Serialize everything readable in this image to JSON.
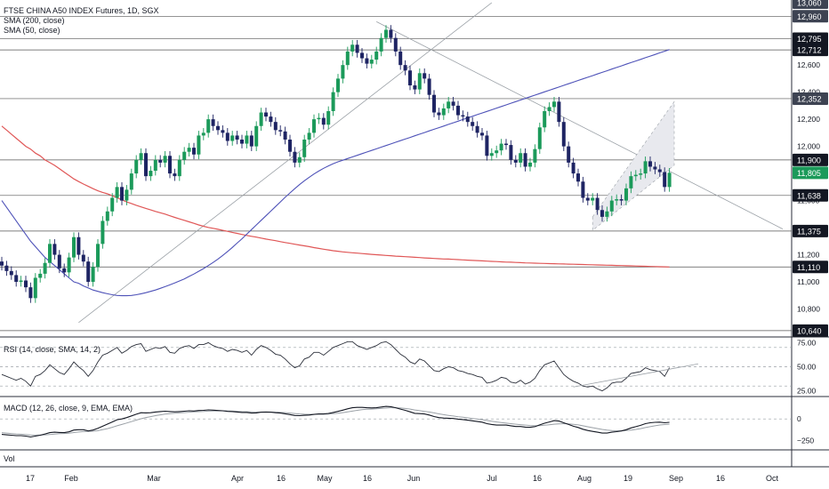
{
  "header": {
    "symbol_line": "FTSE CHINA A50 INDEX Futures, 1D, SGX",
    "sma200_label": "SMA (200, close)",
    "sma50_label": "SMA (50, close)"
  },
  "panes": {
    "rsi_label": "RSI (14, close, SMA, 14, 2)",
    "macd_label": "MACD (12, 26, close, 9, EMA, EMA)",
    "vol_label": "Vol"
  },
  "colors": {
    "up": "#1b9a5a",
    "down": "#1e2463",
    "sma200": "#e05757",
    "sma50": "#4e52b8",
    "trendline": "#9aa0a6",
    "hline": "#555555",
    "rsi": "#2a2e39",
    "macd": "#131722",
    "signal": "#9aa0a6"
  },
  "chart_data": [
    {
      "type": "candlestick",
      "title": "FTSE CHINA A50 INDEX Futures, 1D, SGX",
      "ylim": [
        10600,
        13080
      ],
      "x_ticks": [
        "17",
        "Feb",
        "Mar",
        "Apr",
        "16",
        "May",
        "16",
        "Jun",
        "Jul",
        "16",
        "Aug",
        "19",
        "Sep",
        "16",
        "Oct"
      ],
      "y_ticks": [
        "12,600",
        "12,400",
        "12,200",
        "12,000",
        "11,600",
        "11,200",
        "11,000",
        "10,800"
      ],
      "price_labels": [
        {
          "text": "13,060",
          "value": 13060,
          "style": "dark"
        },
        {
          "text": "12,960",
          "value": 12960,
          "style": "dark"
        },
        {
          "text": "12,795",
          "value": 12795,
          "style": "black"
        },
        {
          "text": "12,712",
          "value": 12712,
          "style": "black"
        },
        {
          "text": "12,352",
          "value": 12352,
          "style": "dark"
        },
        {
          "text": "11,900",
          "value": 11900,
          "style": "black"
        },
        {
          "text": "11,805",
          "value": 11805,
          "style": "green"
        },
        {
          "text": "11,638",
          "value": 11638,
          "style": "black"
        },
        {
          "text": "11,375",
          "value": 11375,
          "style": "black"
        },
        {
          "text": "11,110",
          "value": 11110,
          "style": "black"
        },
        {
          "text": "10,640",
          "value": 10640,
          "style": "black"
        }
      ],
      "horizontal_levels": [
        12960,
        12795,
        12712,
        12352,
        11900,
        11638,
        11375,
        11110,
        10640
      ],
      "closes": [
        11120,
        11080,
        11050,
        11000,
        11010,
        10960,
        10880,
        11030,
        11060,
        11140,
        11280,
        11200,
        11100,
        11070,
        11180,
        11330,
        11200,
        11150,
        11000,
        11110,
        11280,
        11450,
        11520,
        11620,
        11700,
        11600,
        11680,
        11800,
        11900,
        11950,
        11780,
        11820,
        11900,
        11880,
        11930,
        11800,
        11780,
        11900,
        11960,
        11990,
        11940,
        12080,
        12100,
        12200,
        12150,
        12120,
        12100,
        12040,
        12080,
        12050,
        12020,
        12080,
        12000,
        12150,
        12250,
        12220,
        12180,
        12120,
        12110,
        12050,
        11960,
        11880,
        11920,
        12050,
        12100,
        12200,
        12210,
        12160,
        12260,
        12400,
        12500,
        12600,
        12700,
        12750,
        12690,
        12650,
        12610,
        12640,
        12700,
        12800,
        12860,
        12800,
        12700,
        12600,
        12560,
        12450,
        12420,
        12540,
        12500,
        12380,
        12250,
        12230,
        12280,
        12330,
        12300,
        12230,
        12220,
        12180,
        12150,
        12100,
        12080,
        11930,
        11950,
        11970,
        12020,
        12010,
        11900,
        11880,
        11950,
        11850,
        11880,
        11980,
        12140,
        12260,
        12290,
        12330,
        12180,
        12000,
        11880,
        11800,
        11740,
        11620,
        11600,
        11620,
        11530,
        11480,
        11520,
        11600,
        11610,
        11600,
        11690,
        11780,
        11790,
        11800,
        11890,
        11850,
        11830,
        11810,
        11700,
        11805
      ],
      "sma200": [
        12150,
        12120,
        12090,
        12060,
        12030,
        12000,
        11980,
        11950,
        11930,
        11900,
        11880,
        11860,
        11835,
        11810,
        11785,
        11760,
        11740,
        11722,
        11705,
        11688,
        11672,
        11660,
        11650,
        11635,
        11620,
        11605,
        11590,
        11578,
        11565,
        11553,
        11542,
        11531,
        11520,
        11510,
        11500,
        11488,
        11476,
        11465,
        11454,
        11443,
        11432,
        11420,
        11410,
        11402,
        11395,
        11388,
        11380,
        11373,
        11365,
        11358,
        11350,
        11343,
        11336,
        11330,
        11323,
        11316,
        11310,
        11304,
        11297,
        11290,
        11284,
        11278,
        11272,
        11266,
        11260,
        11253,
        11247,
        11241,
        11236,
        11230,
        11226,
        11221,
        11218,
        11215,
        11212,
        11209,
        11206,
        11203,
        11200,
        11198,
        11195,
        11193,
        11190,
        11188,
        11186,
        11184,
        11181,
        11179,
        11177,
        11175,
        11173,
        11171,
        11169,
        11168,
        11166,
        11164,
        11162,
        11160,
        11158,
        11157,
        11155,
        11153,
        11151,
        11150,
        11148,
        11146,
        11145,
        11143,
        11142,
        11140,
        11139,
        11138,
        11137,
        11136,
        11135,
        11134,
        11133,
        11132,
        11131,
        11130,
        11129,
        11128,
        11127,
        11126,
        11125,
        11124,
        11123,
        11122,
        11121,
        11120,
        11119,
        11118,
        11117,
        11116,
        11115,
        11114,
        11113,
        11112,
        11111,
        11110
      ],
      "sma50": [
        11600,
        11550,
        11500,
        11450,
        11400,
        11350,
        11300,
        11260,
        11220,
        11180,
        11150,
        11120,
        11090,
        11060,
        11030,
        11000,
        10990,
        10970,
        10955,
        10940,
        10930,
        10920,
        10912,
        10905,
        10900,
        10898,
        10898,
        10900,
        10905,
        10912,
        10920,
        10930,
        10940,
        10952,
        10965,
        10978,
        10992,
        11007,
        11022,
        11040,
        11058,
        11078,
        11098,
        11120,
        11143,
        11168,
        11195,
        11224,
        11254,
        11286,
        11318,
        11352,
        11386,
        11420,
        11454,
        11488,
        11522,
        11556,
        11590,
        11624,
        11656,
        11688,
        11718,
        11746,
        11772,
        11796,
        11818,
        11838,
        11856,
        11872,
        11886,
        11898,
        11910,
        11922,
        11934,
        11946,
        11958,
        11970,
        11982,
        11994,
        12006,
        12018,
        12030,
        12042,
        12054,
        12066,
        12078,
        12090,
        12102,
        12114,
        12126,
        12138,
        12150,
        12162,
        12174,
        12186,
        12198,
        12210,
        12222,
        12234,
        12246,
        12258,
        12270,
        12282,
        12294,
        12306,
        12318,
        12330,
        12342,
        12354,
        12366,
        12378,
        12390,
        12402,
        12414,
        12426,
        12438,
        12450,
        12462,
        12474,
        12486,
        12498,
        12510,
        12522,
        12534,
        12546,
        12558,
        12570,
        12582,
        12594,
        12606,
        12618,
        12630,
        12642,
        12654,
        12666,
        12678,
        12690,
        12702,
        12714
      ]
    },
    {
      "type": "line",
      "title": "RSI (14, close, SMA, 14, 2)",
      "ylim": [
        20,
        80
      ],
      "y_ticks": [
        "75.00",
        "50.00",
        "25.00"
      ],
      "levels": [
        70,
        50,
        30
      ],
      "values": [
        42,
        40,
        38,
        36,
        38,
        35,
        30,
        40,
        42,
        46,
        52,
        48,
        44,
        42,
        48,
        55,
        50,
        46,
        40,
        46,
        55,
        62,
        64,
        67,
        70,
        64,
        67,
        71,
        73,
        74,
        66,
        68,
        70,
        69,
        71,
        65,
        64,
        69,
        71,
        72,
        69,
        73,
        73,
        75,
        72,
        70,
        69,
        66,
        68,
        67,
        65,
        67,
        62,
        68,
        72,
        70,
        67,
        63,
        62,
        58,
        53,
        49,
        51,
        58,
        60,
        65,
        65,
        62,
        66,
        70,
        72,
        74,
        76,
        76,
        72,
        70,
        68,
        70,
        72,
        75,
        76,
        73,
        68,
        63,
        60,
        55,
        53,
        58,
        56,
        51,
        46,
        45,
        48,
        50,
        49,
        46,
        45,
        43,
        42,
        40,
        39,
        33,
        34,
        36,
        39,
        38,
        34,
        33,
        36,
        32,
        34,
        38,
        46,
        52,
        54,
        56,
        49,
        42,
        38,
        35,
        33,
        30,
        29,
        30,
        27,
        25,
        28,
        33,
        34,
        34,
        38,
        43,
        44,
        45,
        49,
        47,
        46,
        45,
        40,
        49
      ]
    },
    {
      "type": "line",
      "title": "MACD (12, 26, close, 9, EMA, EMA)",
      "y_ticks": [
        "0",
        "−250"
      ],
      "series": [
        {
          "values": [
            -180,
            -185,
            -190,
            -195,
            -195,
            -200,
            -210,
            -200,
            -190,
            -175,
            -160,
            -155,
            -158,
            -160,
            -150,
            -130,
            -125,
            -125,
            -140,
            -130,
            -110,
            -85,
            -60,
            -35,
            -10,
            0,
            15,
            35,
            55,
            72,
            70,
            72,
            80,
            85,
            90,
            85,
            82,
            85,
            90,
            95,
            92,
            98,
            100,
            105,
            102,
            98,
            95,
            88,
            85,
            80,
            75,
            75,
            68,
            70,
            78,
            80,
            78,
            72,
            68,
            60,
            50,
            40,
            38,
            42,
            45,
            52,
            58,
            58,
            64,
            75,
            88,
            102,
            118,
            130,
            134,
            134,
            130,
            128,
            130,
            138,
            145,
            142,
            130,
            115,
            100,
            82,
            65,
            62,
            58,
            45,
            28,
            15,
            10,
            8,
            5,
            -2,
            -8,
            -15,
            -22,
            -30,
            -38,
            -55,
            -65,
            -72,
            -72,
            -72,
            -80,
            -88,
            -88,
            -95,
            -98,
            -90,
            -70,
            -50,
            -35,
            -20,
            -25,
            -45,
            -65,
            -85,
            -100,
            -120,
            -135,
            -145,
            -155,
            -165,
            -165,
            -155,
            -148,
            -140,
            -125,
            -105,
            -90,
            -75,
            -55,
            -45,
            -40,
            -38,
            -45,
            -40
          ]
        },
        {
          "values": [
            -160,
            -165,
            -170,
            -175,
            -178,
            -182,
            -187,
            -189,
            -189,
            -186,
            -181,
            -176,
            -172,
            -170,
            -166,
            -159,
            -152,
            -147,
            -146,
            -143,
            -137,
            -126,
            -113,
            -98,
            -80,
            -64,
            -48,
            -31,
            -14,
            2,
            16,
            27,
            38,
            47,
            56,
            62,
            66,
            70,
            74,
            78,
            81,
            84,
            87,
            91,
            93,
            94,
            94,
            93,
            91,
            89,
            86,
            84,
            81,
            79,
            79,
            79,
            79,
            78,
            76,
            73,
            68,
            63,
            58,
            55,
            53,
            53,
            54,
            55,
            57,
            61,
            66,
            73,
            82,
            91,
            100,
            107,
            112,
            115,
            118,
            122,
            126,
            130,
            130,
            127,
            122,
            114,
            104,
            96,
            88,
            80,
            70,
            59,
            49,
            41,
            34,
            26,
            19,
            12,
            5,
            -2,
            -9,
            -18,
            -27,
            -36,
            -43,
            -49,
            -55,
            -61,
            -67,
            -72,
            -77,
            -80,
            -79,
            -74,
            -68,
            -61,
            -57,
            -55,
            -57,
            -63,
            -70,
            -80,
            -91,
            -102,
            -112,
            -122,
            -131,
            -136,
            -138,
            -139,
            -136,
            -130,
            -122,
            -113,
            -101,
            -90,
            -80,
            -71,
            -66,
            -61
          ]
        }
      ]
    }
  ]
}
